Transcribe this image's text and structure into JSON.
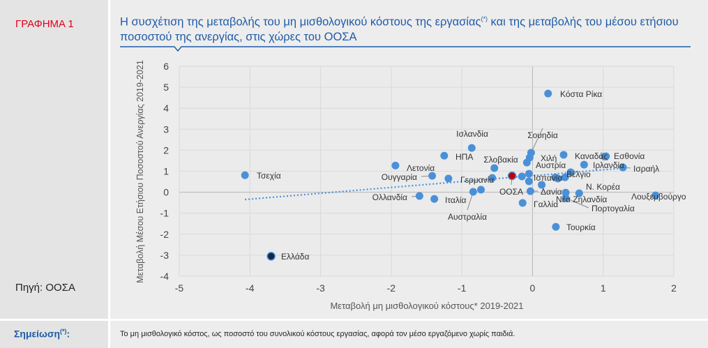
{
  "figure_label": "ΓΡΑΦΗΜΑ 1",
  "source": "Πηγή: ΟΟΣΑ",
  "title_part1": "Η συσχέτιση της μεταβολής του μη μισθολογικού κόστους της εργασίας",
  "title_sup": "(*)",
  "title_part2": " και της μεταβολής του μέσου ετήσιου ποσοστού της ανεργίας, στις χώρες του ΟΟΣΑ",
  "note_label": "Σημείωση",
  "note_sup": "(*)",
  "note_colon": ":",
  "note_text": "Το μη μισθολογικό κόστος, ως ποσοστό του συνολικού κόστους εργασίας, αφορά τον μέσο εργαζόμενο χωρίς παιδιά.",
  "colors": {
    "point": "#4a90d9",
    "greece": "#13294b",
    "oecd": "#c00000",
    "trend": "#4a90d9",
    "title": "#1f5ba8"
  },
  "chart_data": {
    "type": "scatter",
    "xlabel": "Μεταβολή μη μισθολογικού κόστους* 2019-2021",
    "ylabel": "Μεταβολή Μέσου Ετήσιου Ποσοστού Ανεργίας 2019-2021",
    "xlim": [
      -5,
      2
    ],
    "ylim": [
      -4,
      6
    ],
    "xticks": [
      "-5",
      "-4",
      "-3",
      "-2",
      "-1",
      "0",
      "1",
      "2"
    ],
    "yticks": [
      "-4",
      "-3",
      "-2",
      "-1",
      "0",
      "1",
      "2",
      "3",
      "4",
      "5",
      "6"
    ],
    "grid": true,
    "trendline": {
      "x": [
        -4.07,
        1.3
      ],
      "y": [
        -0.35,
        1.15
      ]
    },
    "points": [
      {
        "label": "Τσεχία",
        "x": -4.07,
        "y": 0.81
      },
      {
        "label": "Ελλάδα",
        "x": -3.7,
        "y": -3.05,
        "highlight": "greece"
      },
      {
        "label": "Λετονία",
        "x": -1.94,
        "y": 1.27
      },
      {
        "label": "Ουγγαρία",
        "x": -1.42,
        "y": 0.78
      },
      {
        "label": "",
        "x": -1.19,
        "y": 0.65
      },
      {
        "label": "Ολλανδία",
        "x": -1.6,
        "y": -0.18
      },
      {
        "label": "Ιταλία",
        "x": -1.39,
        "y": -0.32
      },
      {
        "label": "ΗΠΑ",
        "x": -1.25,
        "y": 1.74
      },
      {
        "label": "Ισλανδία",
        "x": -0.86,
        "y": 2.11
      },
      {
        "label": "Σλοβακία",
        "x": -0.54,
        "y": 1.15
      },
      {
        "label": "Γερμανία",
        "x": -0.57,
        "y": 0.68
      },
      {
        "label": "Αυστραλία",
        "x": -0.84,
        "y": 0.02
      },
      {
        "label": "",
        "x": -0.73,
        "y": 0.12
      },
      {
        "label": "ΟΟΣΑ",
        "x": -0.29,
        "y": 0.78,
        "highlight": "oecd"
      },
      {
        "label": "",
        "x": -0.15,
        "y": 0.75
      },
      {
        "label": "Σουηδία",
        "x": -0.02,
        "y": 1.88
      },
      {
        "label": "",
        "x": -0.04,
        "y": 1.65
      },
      {
        "label": "",
        "x": -0.08,
        "y": 1.41
      },
      {
        "label": "",
        "x": -0.05,
        "y": 0.88
      },
      {
        "label": "Ισπανία",
        "x": -0.05,
        "y": 0.52
      },
      {
        "label": "Δανία",
        "x": -0.03,
        "y": 0.05
      },
      {
        "label": "Γαλλία",
        "x": -0.14,
        "y": -0.51
      },
      {
        "label": "Κόστα Ρίκα",
        "x": 0.22,
        "y": 4.7
      },
      {
        "label": "Χιλή",
        "x": 0.44,
        "y": 1.78
      },
      {
        "label": "Αυστρία",
        "x": 0.13,
        "y": 0.35
      },
      {
        "label": "Βέλγιο",
        "x": 0.32,
        "y": 0.7
      },
      {
        "label": "",
        "x": 0.36,
        "y": 0.65
      },
      {
        "label": "",
        "x": 0.46,
        "y": 0.71
      },
      {
        "label": "",
        "x": 0.54,
        "y": 0.95
      },
      {
        "label": "Τουρκία",
        "x": 0.33,
        "y": -1.65
      },
      {
        "label": "Νέα Ζηλανδία",
        "x": 0.47,
        "y": -0.02
      },
      {
        "label": "Πορτογαλία",
        "x": 0.47,
        "y": -0.28
      },
      {
        "label": "Ν. Κορέα",
        "x": 0.66,
        "y": -0.05
      },
      {
        "label": "Ιρλανδία",
        "x": 0.73,
        "y": 1.31
      },
      {
        "label": "Καναδάς",
        "x": 1.02,
        "y": 1.7
      },
      {
        "label": "Εσθονία",
        "x": 1.04,
        "y": 1.71
      },
      {
        "label": "Ισραήλ",
        "x": 1.28,
        "y": 1.18
      },
      {
        "label": "Λουξεμβούργο",
        "x": 1.74,
        "y": -0.15
      }
    ]
  }
}
